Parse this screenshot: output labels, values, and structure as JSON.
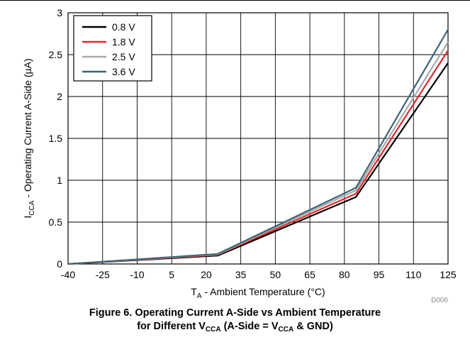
{
  "chart_data": {
    "type": "line",
    "x": [
      -40,
      25,
      85,
      125
    ],
    "series": [
      {
        "name": "0.8 V",
        "color": "#000000",
        "values": [
          0.0,
          0.1,
          0.8,
          2.4
        ]
      },
      {
        "name": "1.8 V",
        "color": "#e8252a",
        "values": [
          0.0,
          0.11,
          0.84,
          2.55
        ]
      },
      {
        "name": "2.5 V",
        "color": "#a8a8a8",
        "values": [
          0.0,
          0.115,
          0.88,
          2.65
        ]
      },
      {
        "name": "3.6 V",
        "color": "#3b6577",
        "values": [
          0.0,
          0.12,
          0.91,
          2.8
        ]
      }
    ],
    "xlim": [
      -40,
      125
    ],
    "ylim": [
      0,
      3
    ],
    "x_ticks": [
      -40,
      -25,
      -10,
      5,
      20,
      35,
      50,
      65,
      80,
      95,
      110,
      125
    ],
    "y_ticks": [
      0,
      0.5,
      1,
      1.5,
      2,
      2.5,
      3
    ],
    "x_tick_labels": [
      "-40",
      "-25",
      "-10",
      "5",
      "20",
      "35",
      "50",
      "65",
      "80",
      "95",
      "110",
      "125"
    ],
    "y_tick_labels": [
      "0",
      "0.5",
      "1",
      "1.5",
      "2",
      "2.5",
      "3"
    ],
    "xlabel": {
      "main": "T",
      "sub": "A",
      "rest": " - Ambient Temperature (°C)"
    },
    "ylabel": {
      "main": "I",
      "sub": "CCA",
      "rest": " - Operating Current A-Side (µA)"
    },
    "grid": true,
    "legend_position": "top-left",
    "figure_code": "D006"
  },
  "caption": {
    "line1": "Figure 6. Operating Current A-Side vs Ambient Temperature",
    "line2_a": "for Different V",
    "line2_sub1": "CCA",
    "line2_b": " (A-Side = V",
    "line2_sub2": "CCA",
    "line2_c": " & GND)"
  }
}
